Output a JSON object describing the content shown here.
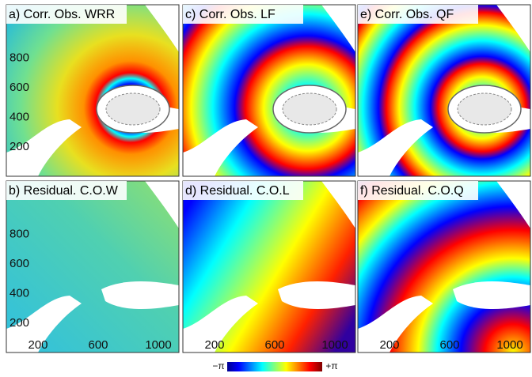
{
  "panels": [
    {
      "title": "a) Corr. Obs. WRR"
    },
    {
      "title": "c) Corr. Obs. LF"
    },
    {
      "title": "e) Corr. Obs. QF"
    },
    {
      "title": "b) Residual. C.O.W"
    },
    {
      "title": "d) Residual. C.O.L"
    },
    {
      "title": "f) Residual. C.O.Q"
    }
  ],
  "y_ticks": [
    200,
    400,
    600,
    800
  ],
  "x_ticks": [
    200,
    600,
    1000
  ],
  "colorbar": {
    "min_label": "−π",
    "max_label": "+π"
  }
}
